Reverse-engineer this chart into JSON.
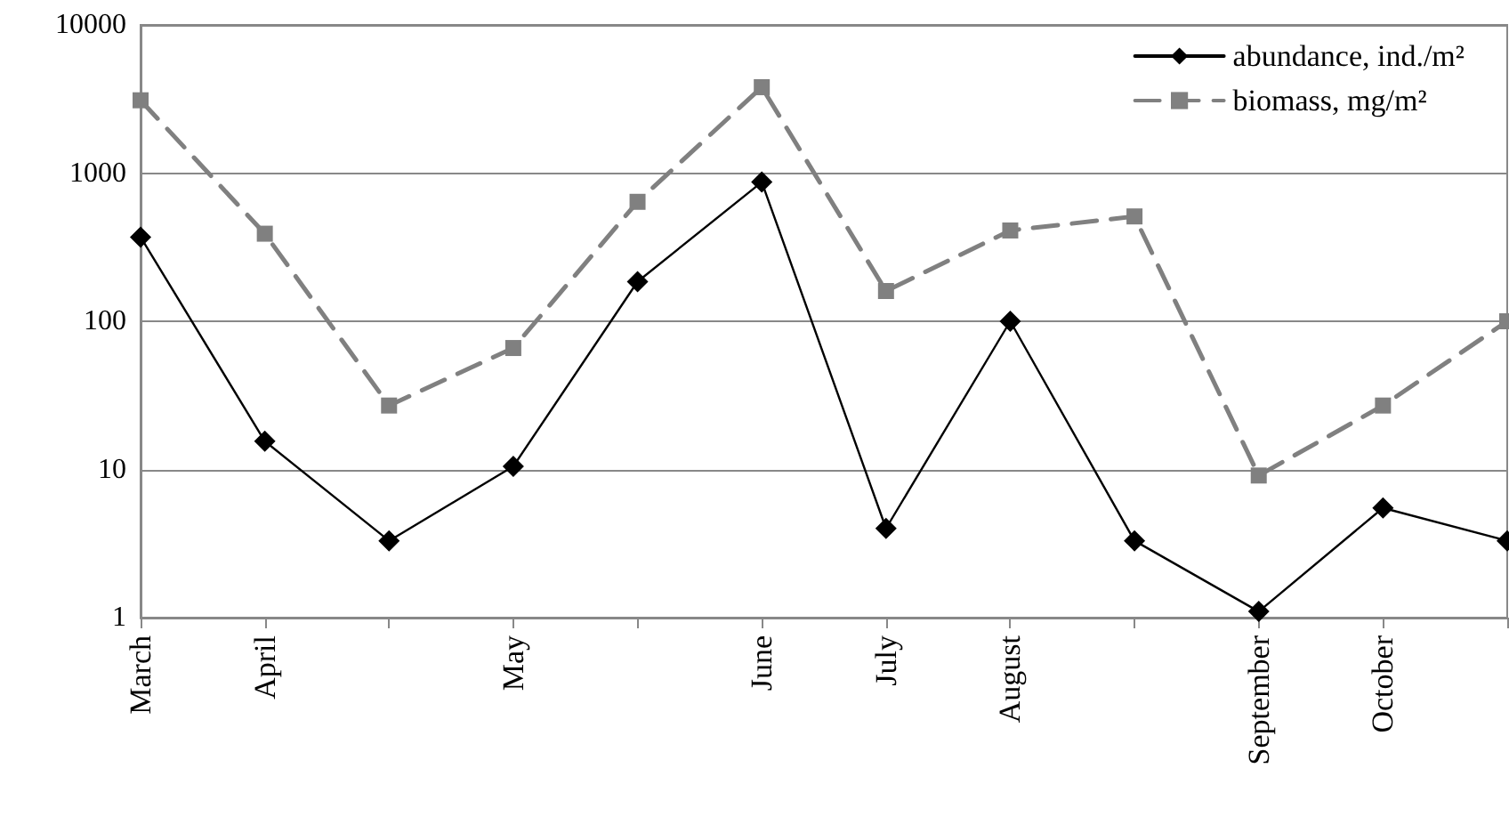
{
  "chart_data": {
    "type": "line",
    "categories": [
      "March",
      "April",
      null,
      "May",
      null,
      "June",
      "July",
      "August",
      null,
      "September",
      "October",
      null
    ],
    "series": [
      {
        "name": "abundance, ind./m²",
        "color": "#000000",
        "marker": "diamond",
        "line_style": "solid",
        "values": [
          370,
          15.5,
          3.3,
          10.5,
          185,
          870,
          4,
          100,
          3.3,
          1.1,
          5.5,
          3.3
        ]
      },
      {
        "name": "biomass, mg/m²",
        "color": "#808080",
        "marker": "square",
        "line_style": "dashed",
        "values": [
          3100,
          390,
          27,
          66,
          640,
          3800,
          160,
          410,
          510,
          9.1,
          27,
          100
        ]
      }
    ],
    "log": "y",
    "ylim": [
      1,
      10000
    ],
    "yticks": [
      1,
      10,
      100,
      1000,
      10000
    ],
    "grid": "y",
    "legend": "top right"
  }
}
